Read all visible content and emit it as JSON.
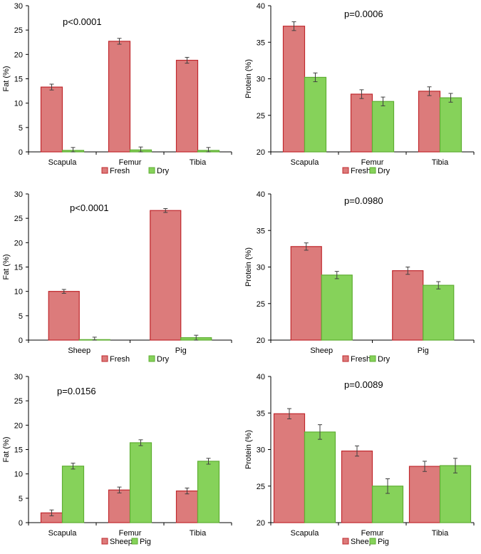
{
  "chart_data": [
    {
      "type": "bar",
      "annotation": "p<0.0001",
      "ylabel": "Fat (%)",
      "ylim": [
        0,
        30
      ],
      "yticks": [
        0,
        5,
        10,
        15,
        20,
        25,
        30
      ],
      "categories": [
        "Scapula",
        "Femur",
        "Tibia"
      ],
      "series": [
        {
          "name": "Fresh",
          "values": [
            13.3,
            22.7,
            18.8
          ],
          "errors": [
            0.6,
            0.6,
            0.6
          ]
        },
        {
          "name": "Dry",
          "values": [
            0.3,
            0.4,
            0.3
          ],
          "errors": [
            0.6,
            0.6,
            0.6
          ]
        }
      ],
      "legend_position": "bottom"
    },
    {
      "type": "bar",
      "annotation": "p=0.0006",
      "ylabel": "Protein (%)",
      "ylim": [
        20,
        40
      ],
      "yticks": [
        20,
        25,
        30,
        35,
        40
      ],
      "categories": [
        "Scapula",
        "Femur",
        "Tibia"
      ],
      "series": [
        {
          "name": "Fresh",
          "values": [
            37.2,
            27.9,
            28.3
          ],
          "errors": [
            0.6,
            0.6,
            0.6
          ]
        },
        {
          "name": "Dry",
          "values": [
            30.2,
            26.9,
            27.4
          ],
          "errors": [
            0.6,
            0.6,
            0.6
          ]
        }
      ],
      "legend_position": "bottom"
    },
    {
      "type": "bar",
      "annotation": "p<0.0001",
      "ylabel": "Fat (%)",
      "ylim": [
        0,
        30
      ],
      "yticks": [
        0,
        5,
        10,
        15,
        20,
        25,
        30
      ],
      "categories": [
        "Sheep",
        "Pig"
      ],
      "series": [
        {
          "name": "Fresh",
          "values": [
            10.0,
            26.6
          ],
          "errors": [
            0.4,
            0.4
          ]
        },
        {
          "name": "Dry",
          "values": [
            0.1,
            0.5
          ],
          "errors": [
            0.5,
            0.5
          ]
        }
      ],
      "legend_position": "bottom"
    },
    {
      "type": "bar",
      "annotation": "p=0.0980",
      "ylabel": "Protein (%)",
      "ylim": [
        20,
        40
      ],
      "yticks": [
        20,
        25,
        30,
        35,
        40
      ],
      "categories": [
        "Sheep",
        "Pig"
      ],
      "series": [
        {
          "name": "Fresh",
          "values": [
            32.8,
            29.5
          ],
          "errors": [
            0.5,
            0.5
          ]
        },
        {
          "name": "Dry",
          "values": [
            28.9,
            27.5
          ],
          "errors": [
            0.5,
            0.5
          ]
        }
      ],
      "legend_position": "bottom"
    },
    {
      "type": "bar",
      "annotation": "p=0.0156",
      "ylabel": "Fat (%)",
      "ylim": [
        0,
        30
      ],
      "yticks": [
        0,
        5,
        10,
        15,
        20,
        25,
        30
      ],
      "categories": [
        "Scapula",
        "Femur",
        "Tibia"
      ],
      "series": [
        {
          "name": "Sheep",
          "values": [
            2.0,
            6.7,
            6.5
          ],
          "errors": [
            0.6,
            0.6,
            0.6
          ]
        },
        {
          "name": "Pig",
          "values": [
            11.6,
            16.4,
            12.6
          ],
          "errors": [
            0.6,
            0.6,
            0.6
          ]
        }
      ],
      "legend_position": "bottom"
    },
    {
      "type": "bar",
      "annotation": "p=0.0089",
      "ylabel": "Protein (%)",
      "ylim": [
        20,
        40
      ],
      "yticks": [
        20,
        25,
        30,
        35,
        40
      ],
      "categories": [
        "Scapula",
        "Femur",
        "Tibia"
      ],
      "series": [
        {
          "name": "Sheep",
          "values": [
            34.9,
            29.8,
            27.7
          ],
          "errors": [
            0.7,
            0.7,
            0.7
          ]
        },
        {
          "name": "Pig",
          "values": [
            32.4,
            25.0,
            27.8
          ],
          "errors": [
            1.0,
            1.0,
            1.0
          ]
        }
      ],
      "legend_position": "bottom"
    }
  ],
  "colors": {
    "series1_fill": "#dc7b7b",
    "series1_stroke": "#c0282d",
    "series2_fill": "#86d25a",
    "series2_stroke": "#5fae33",
    "axis": "#000000",
    "errorbar": "#404040"
  }
}
